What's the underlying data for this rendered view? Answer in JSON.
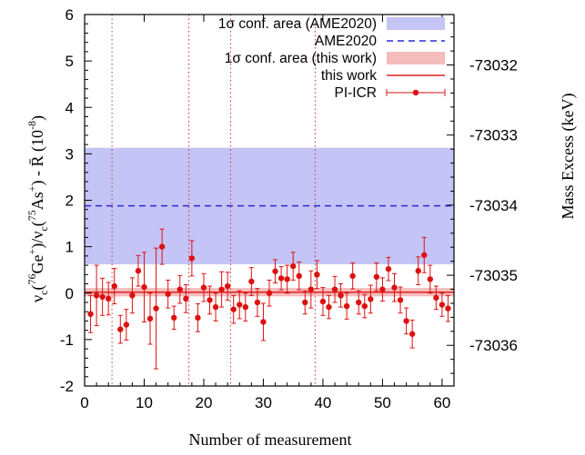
{
  "chart_data": {
    "type": "scatter",
    "xlabel": "Number of measurement",
    "ylabel_parts": {
      "p1": "ν",
      "s1": "c",
      "p2": "(",
      "sup1": "76",
      "p3": "Ge",
      "sup2": "+",
      "p4": ")/ν",
      "s2": "c",
      "p5": "(",
      "sup3": "75",
      "p6": "As",
      "sup4": "+",
      "p7": ") - ",
      "rbar": "R̄",
      "p8": " (10",
      "sup5": "-8",
      "p9": ")"
    },
    "y2label": "Mass Excess (keV)",
    "xlim": [
      0,
      62
    ],
    "ylim": [
      -2,
      6
    ],
    "y2lim": [
      -73036.58,
      -73031.28
    ],
    "xticks": [
      0,
      10,
      20,
      30,
      40,
      50,
      60
    ],
    "yticks": [
      -2,
      -1,
      0,
      1,
      2,
      3,
      4,
      5,
      6
    ],
    "y2ticks": [
      -73036,
      -73035,
      -73034,
      -73033,
      -73032
    ],
    "ame2020": {
      "value": 1.88,
      "band": [
        0.62,
        3.13
      ],
      "color": "#2a2ad6",
      "band_color": "#c4c4f6"
    },
    "this_work": {
      "value": 0.02,
      "band": [
        -0.07,
        0.11
      ],
      "color": "#dd2222",
      "band_color": "#f4bcbc"
    },
    "vlines_x": [
      4.6,
      17.5,
      24.5,
      38.7
    ],
    "legend": {
      "placement": "top-right",
      "entries": [
        {
          "label": "1σ conf. area (AME2020)",
          "kind": "band",
          "color": "#c4c4f6"
        },
        {
          "label": "AME2020",
          "kind": "dash",
          "color": "#2a2ad6"
        },
        {
          "label": "1σ conf. area (this work)",
          "kind": "band",
          "color": "#f4bcbc"
        },
        {
          "label": "this work",
          "kind": "line",
          "color": "#dd2222"
        },
        {
          "label": "PI-ICR",
          "kind": "errorbar",
          "color": "#dd1111"
        }
      ]
    },
    "series": [
      {
        "name": "PI-ICR",
        "color": "#dd1111",
        "x": [
          1,
          2,
          3,
          4,
          5,
          6,
          7,
          8,
          9,
          10,
          11,
          12,
          13,
          14,
          15,
          16,
          17,
          18,
          19,
          20,
          21,
          22,
          23,
          24,
          25,
          26,
          27,
          28,
          29,
          30,
          31,
          32,
          33,
          34,
          35,
          36,
          37,
          38,
          39,
          40,
          41,
          42,
          43,
          44,
          45,
          46,
          47,
          48,
          49,
          50,
          51,
          52,
          53,
          54,
          55,
          56,
          57,
          58,
          59,
          60,
          61
        ],
        "y": [
          -0.45,
          -0.05,
          -0.08,
          -0.12,
          0.15,
          -0.78,
          -0.68,
          -0.05,
          0.48,
          0.13,
          -0.55,
          -0.33,
          1.0,
          -0.02,
          -0.53,
          0.08,
          -0.12,
          0.75,
          -0.53,
          0.12,
          -0.15,
          -0.3,
          0.08,
          0.15,
          -0.35,
          -0.25,
          -0.3,
          0.25,
          -0.2,
          -0.62,
          0.0,
          0.47,
          0.32,
          0.3,
          0.58,
          0.37,
          -0.2,
          0.08,
          0.4,
          -0.18,
          -0.3,
          0.08,
          -0.05,
          -0.28,
          0.37,
          -0.2,
          -0.28,
          -0.13,
          0.35,
          0.08,
          0.52,
          0.12,
          -0.15,
          -0.6,
          -0.88,
          0.48,
          0.82,
          0.3,
          -0.1,
          -0.25,
          -0.33
        ],
        "yerr": [
          0.4,
          0.65,
          0.4,
          0.35,
          0.38,
          0.3,
          0.33,
          0.38,
          0.33,
          0.75,
          0.55,
          1.3,
          0.38,
          0.3,
          0.25,
          0.3,
          0.3,
          0.38,
          0.3,
          0.3,
          0.3,
          0.3,
          0.38,
          0.3,
          0.3,
          0.3,
          0.3,
          0.3,
          0.3,
          0.4,
          0.28,
          0.25,
          0.25,
          0.3,
          0.3,
          0.3,
          0.25,
          0.4,
          0.3,
          0.3,
          0.25,
          0.28,
          0.25,
          0.28,
          0.28,
          0.25,
          0.25,
          0.3,
          0.3,
          0.25,
          0.25,
          0.3,
          0.28,
          0.28,
          0.3,
          0.3,
          0.38,
          0.3,
          0.25,
          0.25,
          0.28
        ]
      }
    ]
  }
}
